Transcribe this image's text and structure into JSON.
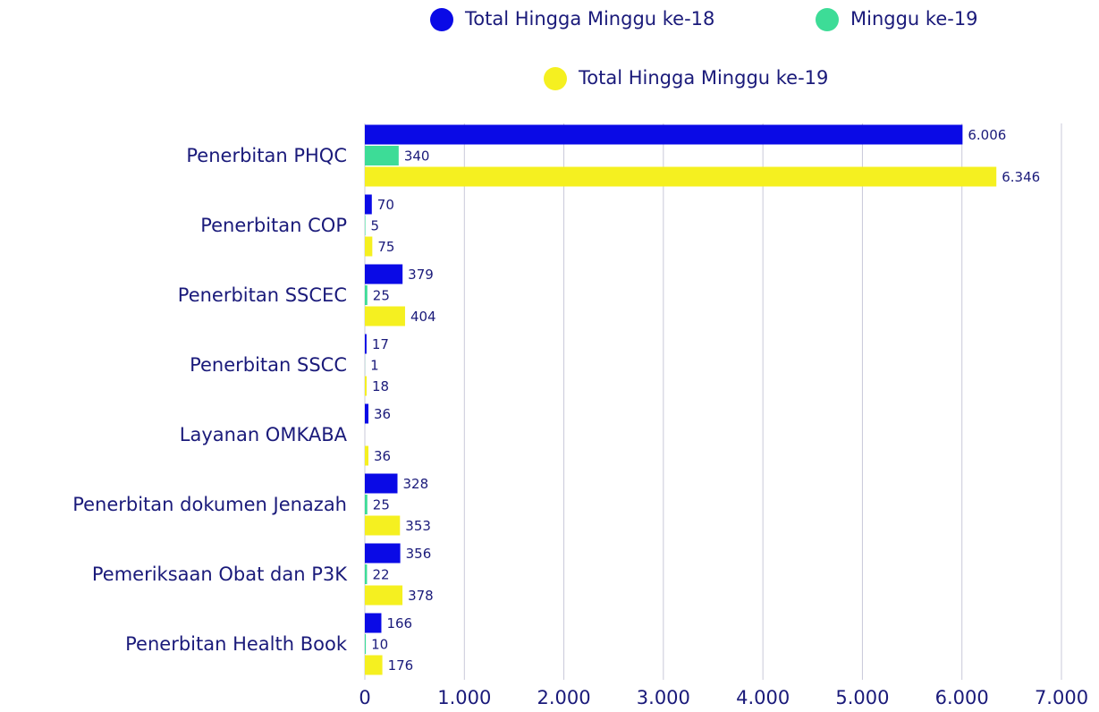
{
  "chart_data": {
    "type": "barh",
    "categories": [
      "Penerbitan PHQC",
      "Penerbitan COP",
      "Penerbitan SSCEC",
      "Penerbitan SSCC",
      "Layanan OMKABA",
      "Penerbitan dokumen Jenazah",
      "Pemeriksaan Obat dan P3K",
      "Penerbitan Health Book"
    ],
    "series": [
      {
        "name": "Total Hingga Minggu ke-18",
        "color": "#0a0ae6",
        "values": [
          6006,
          70,
          379,
          17,
          36,
          328,
          356,
          166
        ],
        "value_labels": [
          "6.006",
          "70",
          "379",
          "17",
          "36",
          "328",
          "356",
          "166"
        ]
      },
      {
        "name": "Minggu ke-19",
        "color": "#3ddc97",
        "values": [
          340,
          5,
          25,
          1,
          null,
          25,
          22,
          10
        ]
      },
      {
        "name": "Total Hingga Minggu ke-19",
        "color": "#f5f020",
        "values": [
          6346,
          75,
          404,
          18,
          36,
          353,
          378,
          176
        ],
        "value_labels": [
          "6.346",
          "75",
          "404",
          "18",
          "36",
          "353",
          "378",
          "176"
        ]
      }
    ],
    "xlim": [
      0,
      7000
    ],
    "xticks": [
      0,
      {
        "value": 1000,
        "label": "1.000"
      },
      {
        "value": 2000,
        "label": "2.000"
      },
      {
        "value": 3000,
        "label": "3.000"
      },
      {
        "value": 4000,
        "label": "4.000"
      },
      {
        "value": 5000,
        "label": "5.000"
      },
      {
        "value": 6000,
        "label": "6.000"
      },
      {
        "value": 7000,
        "label": "7.000"
      }
    ],
    "grid": true
  }
}
